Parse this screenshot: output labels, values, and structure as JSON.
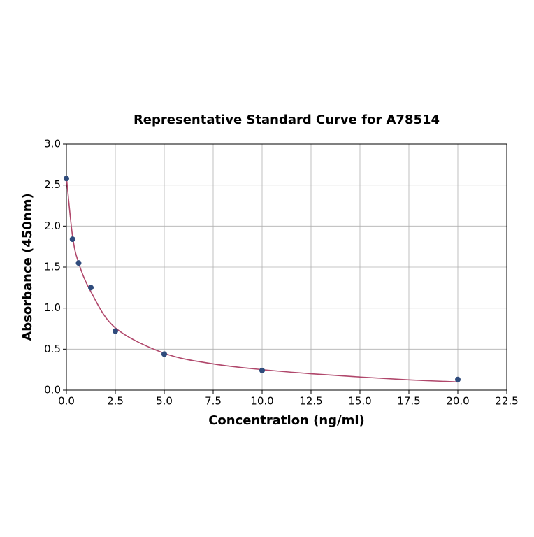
{
  "chart_data": {
    "type": "scatter",
    "title": "Representative Standard Curve for A78514",
    "xlabel": "Concentration (ng/ml)",
    "ylabel": "Absorbance (450nm)",
    "xlim": [
      0,
      22.5
    ],
    "ylim": [
      0,
      3
    ],
    "xticks": [
      {
        "value": 0,
        "label": "0.0"
      },
      2.5,
      {
        "value": 5,
        "label": "5.0"
      },
      7.5,
      {
        "value": 10,
        "label": "10.0"
      },
      12.5,
      {
        "value": 15,
        "label": "15.0"
      },
      17.5,
      {
        "value": 20,
        "label": "20.0"
      },
      22.5
    ],
    "yticks": [
      {
        "value": 0,
        "label": "0.0"
      },
      0.5,
      {
        "value": 1,
        "label": "1.0"
      },
      1.5,
      {
        "value": 2,
        "label": "2.0"
      },
      2.5,
      {
        "value": 3,
        "label": "3.0"
      }
    ],
    "grid": true,
    "series": [
      {
        "type": "line",
        "color": "#b0476b",
        "x": [
          0,
          0.3125,
          0.625,
          1.25,
          2.5,
          5,
          7.5,
          10,
          12.5,
          15,
          17.5,
          20
        ],
        "values": [
          2.6,
          1.88,
          1.55,
          1.2,
          0.76,
          0.45,
          0.32,
          0.25,
          0.2,
          0.16,
          0.125,
          0.1
        ]
      },
      {
        "type": "scatter",
        "color": "#2f4b7c",
        "x": [
          0,
          0.3125,
          0.625,
          1.25,
          2.5,
          5,
          10,
          20
        ],
        "values": [
          2.58,
          1.84,
          1.55,
          1.25,
          0.72,
          0.44,
          0.24,
          0.13
        ]
      }
    ]
  }
}
